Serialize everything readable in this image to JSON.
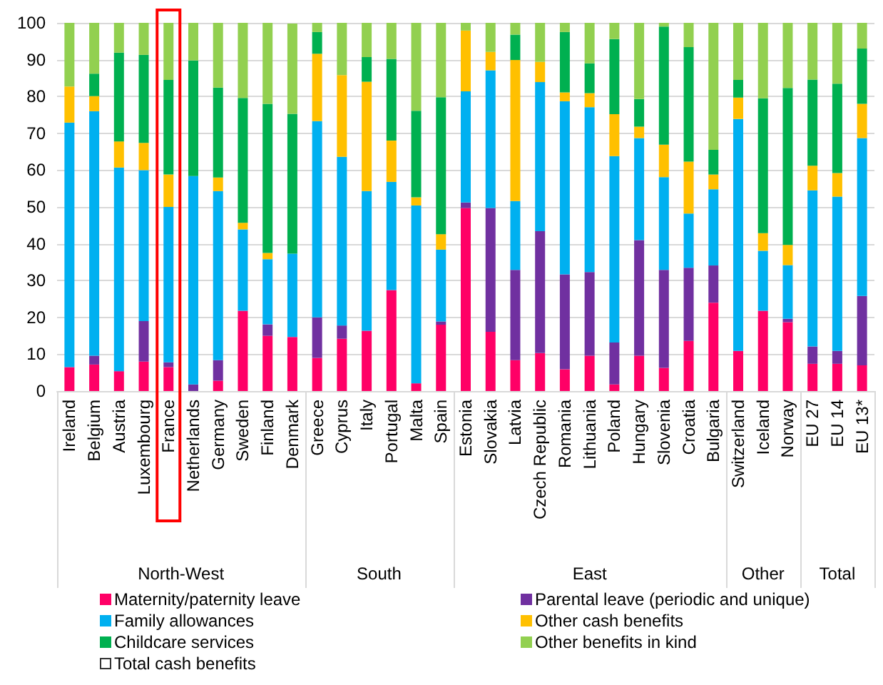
{
  "chart_data": {
    "type": "bar",
    "stacked": true,
    "categories": [
      "Ireland",
      "Belgium",
      "Austria",
      "Luxembourg",
      "France",
      "Netherlands",
      "Germany",
      "Sweden",
      "Finland",
      "Denmark",
      "Greece",
      "Cyprus",
      "Italy",
      "Portugal",
      "Malta",
      "Spain",
      "Estonia",
      "Slovakia",
      "Latvia",
      "Czech Republic",
      "Romania",
      "Lithuania",
      "Poland",
      "Hungary",
      "Slovenia",
      "Croatia",
      "Bulgaria",
      "Switzerland",
      "Iceland",
      "Norway",
      "EU 27",
      "EU 14",
      "EU 13*"
    ],
    "annotations": [
      "North-West",
      "South",
      "East",
      "Other",
      "Total",
      "Total cash benefits"
    ],
    "series": [
      {
        "name": "Maternity/paternity leave",
        "color": "#ff0066",
        "values": [
          6.5,
          7.2,
          5.4,
          8,
          6.5,
          0,
          2.8,
          21.8,
          15,
          14.7,
          9,
          14.2,
          16.4,
          27.4,
          2.1,
          18,
          49.7,
          16.1,
          8.4,
          10.3,
          5.9,
          9.6,
          1.8,
          9.6,
          6.3,
          13.6,
          24,
          10.9,
          21.8,
          18.7,
          7.4,
          7.4,
          7
        ]
      },
      {
        "name": "Parental leave (periodic and unique)",
        "color": "#7030a0",
        "values": [
          0,
          2.4,
          0,
          11,
          1.3,
          1.8,
          5.6,
          0,
          3.1,
          0,
          11,
          3.6,
          0,
          0,
          0,
          0.9,
          1.5,
          33.6,
          24.5,
          33.1,
          25.8,
          22.7,
          11.4,
          31.4,
          26.6,
          19.9,
          10.1,
          0,
          0,
          0.9,
          4.7,
          3.5,
          18.8
        ]
      },
      {
        "name": "Family allowances",
        "color": "#00b0f0",
        "values": [
          66.4,
          66.4,
          55.3,
          41,
          42.2,
          56.6,
          45.9,
          22.1,
          17.7,
          22.6,
          53.3,
          45.8,
          37.9,
          29.4,
          48.3,
          19.5,
          30.2,
          37.4,
          18.7,
          40.5,
          47,
          44.8,
          50.6,
          27.7,
          25.2,
          14.7,
          20.7,
          63,
          16.3,
          14.6,
          42.4,
          41.9,
          42.9
        ]
      },
      {
        "name": "Other cash benefits",
        "color": "#ffc000",
        "values": [
          9.8,
          4.1,
          7.1,
          7.4,
          8.8,
          0,
          3.7,
          1.8,
          1.7,
          0,
          18.3,
          22.2,
          29.7,
          11.2,
          2.2,
          4.2,
          16.5,
          5,
          38.3,
          5.5,
          2.4,
          3.8,
          11.4,
          3.1,
          8.8,
          14.1,
          4,
          5.8,
          4.8,
          5.5,
          6.7,
          6.4,
          9.3
        ]
      },
      {
        "name": "Childcare services",
        "color": "#00b050",
        "values": [
          0,
          6.1,
          24.1,
          23.9,
          25.7,
          31.4,
          24.4,
          33.9,
          40.5,
          38,
          5.9,
          0,
          6.7,
          22.2,
          23.5,
          37.2,
          0,
          0,
          6.9,
          0,
          16.4,
          8.1,
          20.4,
          7.5,
          32.1,
          31.1,
          6.7,
          4.8,
          36.6,
          42.6,
          23.4,
          24.3,
          15
        ]
      },
      {
        "name": "Other benefits in kind",
        "color": "#92d050",
        "values": [
          17.3,
          13.8,
          8.1,
          8.7,
          15.5,
          10.2,
          17.6,
          20.4,
          22,
          24.5,
          2.5,
          14.2,
          9.3,
          9.8,
          23.9,
          20.2,
          2.1,
          7.9,
          3.2,
          10.6,
          2.5,
          11,
          4.4,
          20.7,
          1,
          6.6,
          34.5,
          15.5,
          20.5,
          17.7,
          15.4,
          16.5,
          7
        ]
      }
    ],
    "ylim": [
      0,
      100
    ],
    "yticks": [
      0,
      10,
      20,
      30,
      40,
      50,
      60,
      70,
      80,
      90,
      100
    ],
    "grid": "y",
    "legend": "bottom"
  }
}
